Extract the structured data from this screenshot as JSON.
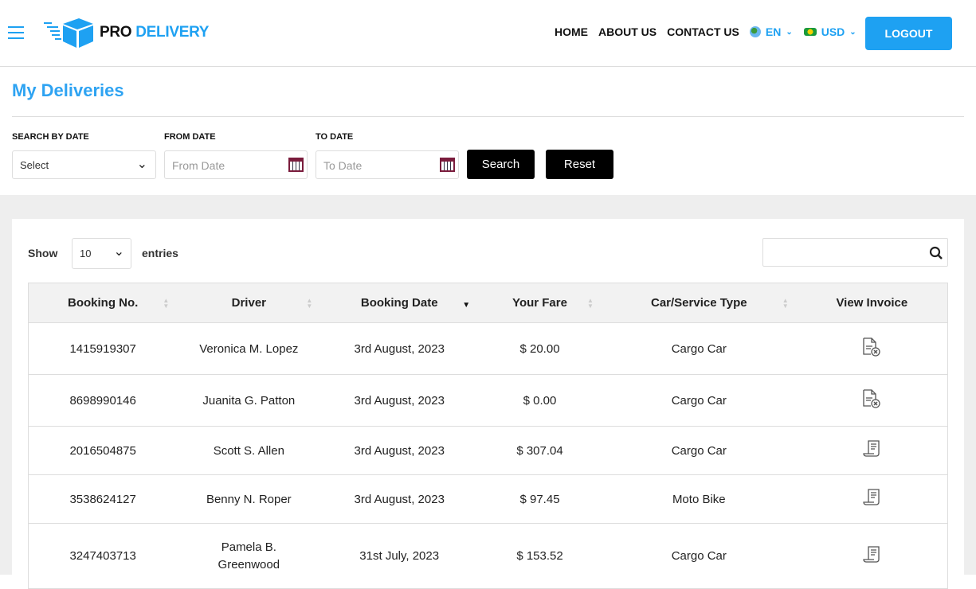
{
  "header": {
    "brand_pro": "PRO",
    "brand_delivery": "DELIVERY",
    "nav": [
      "HOME",
      "ABOUT US",
      "CONTACT US"
    ],
    "language": "EN",
    "currency": "USD",
    "logout": "LOGOUT"
  },
  "page": {
    "title": "My Deliveries"
  },
  "filters": {
    "search_by_date_label": "SEARCH BY DATE",
    "search_by_date_value": "Select",
    "from_label": "FROM DATE",
    "from_placeholder": "From Date",
    "to_label": "TO DATE",
    "to_placeholder": "To Date",
    "search": "Search",
    "reset": "Reset"
  },
  "table_controls": {
    "show": "Show",
    "entries_value": "10",
    "entries": "entries"
  },
  "table": {
    "columns": [
      "Booking No.",
      "Driver",
      "Booking Date",
      "Your Fare",
      "Car/Service Type",
      "View Invoice"
    ],
    "rows": [
      {
        "booking": "1415919307",
        "driver": "Veronica M. Lopez",
        "date": "3rd August, 2023",
        "fare": "$ 20.00",
        "type": "Cargo Car",
        "invoice_icon": "invoice-cancelled-icon"
      },
      {
        "booking": "8698990146",
        "driver": "Juanita G. Patton",
        "date": "3rd August, 2023",
        "fare": "$ 0.00",
        "type": "Cargo Car",
        "invoice_icon": "invoice-cancelled-icon"
      },
      {
        "booking": "2016504875",
        "driver": "Scott S. Allen",
        "date": "3rd August, 2023",
        "fare": "$ 307.04",
        "type": "Cargo Car",
        "invoice_icon": "receipt-icon"
      },
      {
        "booking": "3538624127",
        "driver": "Benny N. Roper",
        "date": "3rd August, 2023",
        "fare": "$ 97.45",
        "type": "Moto Bike",
        "invoice_icon": "receipt-icon"
      },
      {
        "booking": "3247403713",
        "driver": "Pamela B. Greenwood",
        "date": "31st July, 2023",
        "fare": "$ 153.52",
        "type": "Cargo Car",
        "invoice_icon": "receipt-icon"
      }
    ]
  },
  "colors": {
    "accent": "#1ea1f2",
    "title": "#2ea3f2"
  }
}
